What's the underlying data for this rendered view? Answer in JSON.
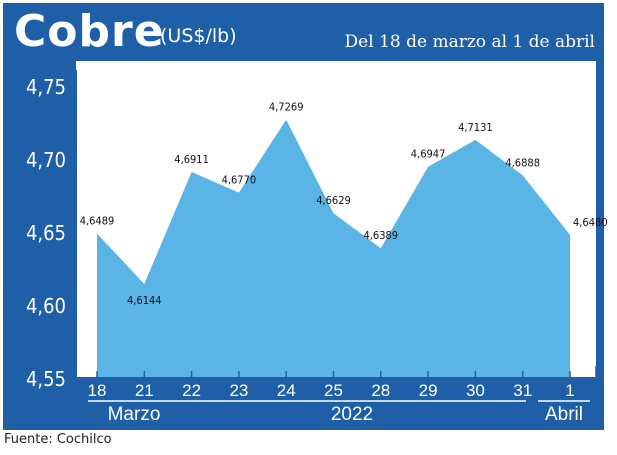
{
  "header": {
    "title": "Cobre",
    "unit": "(US$/lb)",
    "subtitle": "Del 18 de marzo al 1 de abril"
  },
  "source": "Fuente: Cochilco",
  "colors": {
    "frame": "#1f5fa8",
    "plot_background": "#ffffff",
    "area_fill": "#5ab4e6",
    "axis_text": "#ffffff",
    "data_label": "#111111"
  },
  "chart_data": {
    "type": "area",
    "title": "Cobre",
    "ylabel": "(US$/lb)",
    "categories": [
      "18",
      "21",
      "22",
      "23",
      "24",
      "25",
      "28",
      "29",
      "30",
      "31",
      "1"
    ],
    "values": [
      4.6489,
      4.6144,
      4.6911,
      4.677,
      4.7269,
      4.6629,
      4.6389,
      4.6947,
      4.7131,
      4.6888,
      4.648
    ],
    "data_labels": [
      "4,6489",
      "4,6144",
      "4,6911",
      "4,6770",
      "4,7269",
      "4,6629",
      "4,6389",
      "4,6947",
      "4,7131",
      "4,6888",
      "4,6480"
    ],
    "ylim": [
      4.55,
      4.75
    ],
    "yticks": [
      4.55,
      4.6,
      4.65,
      4.7,
      4.75
    ],
    "ytick_labels": [
      "4,55",
      "4,60",
      "4,65",
      "4,70",
      "4,75"
    ],
    "grid": false,
    "x_groups": [
      {
        "label": "Marzo",
        "from": 0,
        "to": 9
      },
      {
        "label": "2022",
        "from": 0,
        "to": 9
      },
      {
        "label": "Abril",
        "from": 10,
        "to": 10
      }
    ]
  }
}
